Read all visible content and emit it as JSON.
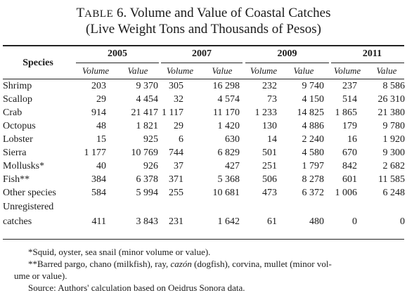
{
  "title": {
    "table_label_first": "T",
    "table_label_rest": "ABLE",
    "line1_rest": " 6. Volume and Value of Coastal Catches",
    "line2": "(Live Weight Tons and Thousands of Pesos)"
  },
  "header": {
    "species": "Species",
    "years": [
      "2005",
      "2007",
      "2009",
      "2011"
    ],
    "volume": "Volume",
    "value": "Value"
  },
  "rows": [
    {
      "species": "Shrimp",
      "cells": [
        "203",
        "9 370",
        "305",
        "16 298",
        "232",
        "9 740",
        "237",
        "8 586"
      ]
    },
    {
      "species": "Scallop",
      "cells": [
        "29",
        "4 454",
        "32",
        "4 574",
        "73",
        "4 150",
        "514",
        "26 310"
      ]
    },
    {
      "species": "Crab",
      "cells": [
        "914",
        "21 417",
        "1 117",
        "11 170",
        "1 233",
        "14 825",
        "1 865",
        "21 380"
      ]
    },
    {
      "species": "Octopus",
      "cells": [
        "48",
        "1 821",
        "29",
        "1 420",
        "130",
        "4 886",
        "179",
        "9 780"
      ]
    },
    {
      "species": "Lobster",
      "cells": [
        "15",
        "925",
        "6",
        "630",
        "14",
        "2 240",
        "16",
        "1 920"
      ]
    },
    {
      "species": "Sierra",
      "cells": [
        "1 177",
        "10 769",
        "744",
        "6 829",
        "501",
        "4 580",
        "670",
        "9 300"
      ]
    },
    {
      "species": "Mollusks*",
      "cells": [
        "40",
        "926",
        "37",
        "427",
        "251",
        "1 797",
        "842",
        "2 682"
      ]
    },
    {
      "species": "Fish**",
      "cells": [
        "384",
        "6 378",
        "371",
        "5 368",
        "506",
        "8 278",
        "601",
        "11 585"
      ]
    },
    {
      "species": "Other species",
      "cells": [
        "584",
        "5 994",
        "255",
        "10 681",
        "473",
        "6 372",
        "1 006",
        "6 248"
      ]
    }
  ],
  "unregistered": {
    "line1": "Unregistered",
    "line2": "catches",
    "cells": [
      "411",
      "3 843",
      "231",
      "1 642",
      "61",
      "480",
      "0",
      "0"
    ]
  },
  "notes": {
    "note1": "*Squid, oyster, sea snail (minor volume or value).",
    "note2_a": "**Barred pargo, chano (milkfish), ray, ",
    "note2_italic": "cazón",
    "note2_b": " (dogfish), corvina, mullet (minor vol-",
    "note2_c": "ume or value).",
    "source": "Source: Authors' calculation based on Oeidrus Sonora data."
  }
}
